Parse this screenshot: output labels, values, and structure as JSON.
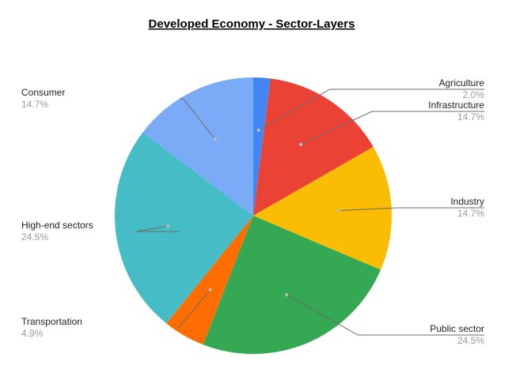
{
  "chart_data": {
    "type": "pie",
    "title": "Developed Economy - Sector-Layers",
    "start_angle_deg": 0,
    "direction": "clockwise",
    "slices": [
      {
        "label": "Agriculture",
        "value": 2.0,
        "display": "2.0%",
        "color": "#4285f4",
        "side": "right"
      },
      {
        "label": "Infrastructure",
        "value": 14.7,
        "display": "14.7%",
        "color": "#ea4335",
        "side": "right"
      },
      {
        "label": "Industry",
        "value": 14.7,
        "display": "14.7%",
        "color": "#fbbc04",
        "side": "right"
      },
      {
        "label": "Public sector",
        "value": 24.5,
        "display": "24.5%",
        "color": "#34a853",
        "side": "right"
      },
      {
        "label": "Transportation",
        "value": 4.9,
        "display": "4.9%",
        "color": "#ff6d01",
        "side": "left"
      },
      {
        "label": "High-end sectors",
        "value": 24.5,
        "display": "24.5%",
        "color": "#46bdc6",
        "side": "left"
      },
      {
        "label": "Consumer",
        "value": 14.7,
        "display": "14.7%",
        "color": "#7baaf7",
        "side": "left"
      }
    ]
  }
}
